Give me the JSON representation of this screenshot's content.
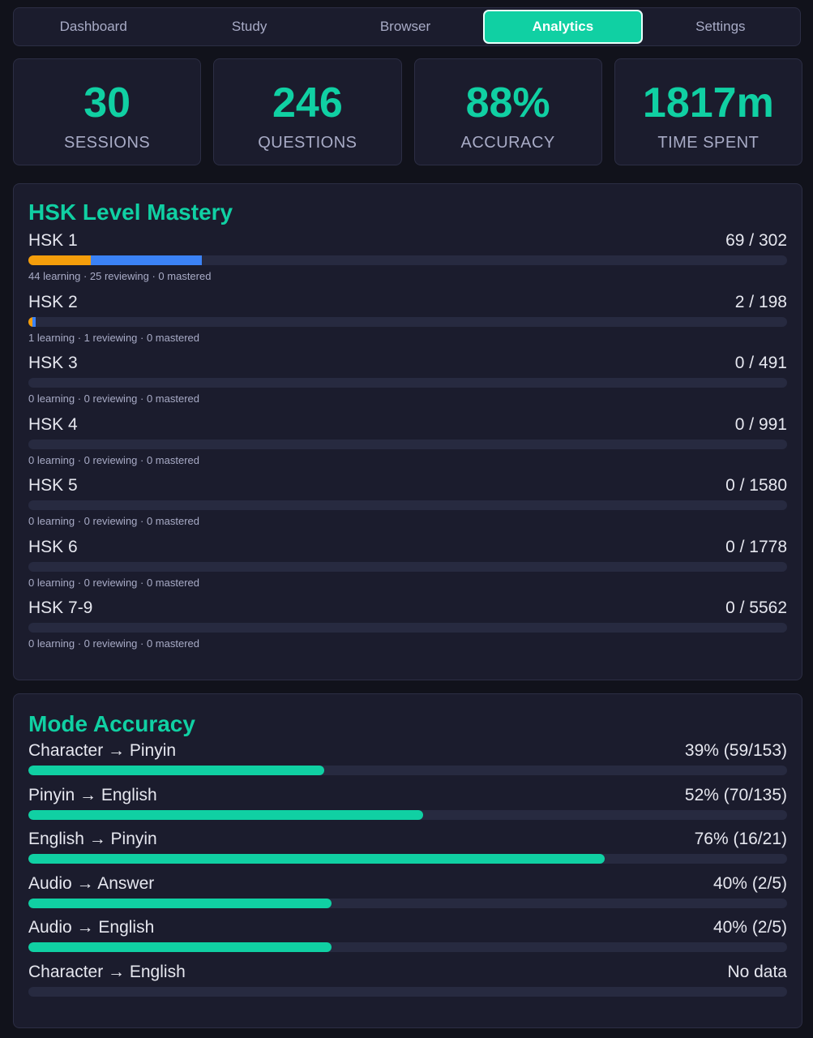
{
  "nav": {
    "tabs": [
      "Dashboard",
      "Study",
      "Browser",
      "Analytics",
      "Settings"
    ],
    "active": 3
  },
  "stats": [
    {
      "value": "30",
      "label": "SESSIONS"
    },
    {
      "value": "246",
      "label": "QUESTIONS"
    },
    {
      "value": "88%",
      "label": "ACCURACY"
    },
    {
      "value": "1817m",
      "label": "TIME SPENT"
    }
  ],
  "hsk": {
    "title": "HSK Level Mastery",
    "levels": [
      {
        "name": "HSK 1",
        "count": "69 / 302",
        "detail": "44 learning · 25 reviewing · 0 mastered",
        "learning": 44,
        "reviewing": 25,
        "mastered": 0,
        "total": 302
      },
      {
        "name": "HSK 2",
        "count": "2 / 198",
        "detail": "1 learning · 1 reviewing · 0 mastered",
        "learning": 1,
        "reviewing": 1,
        "mastered": 0,
        "total": 198
      },
      {
        "name": "HSK 3",
        "count": "0 / 491",
        "detail": "0 learning · 0 reviewing · 0 mastered",
        "learning": 0,
        "reviewing": 0,
        "mastered": 0,
        "total": 491
      },
      {
        "name": "HSK 4",
        "count": "0 / 991",
        "detail": "0 learning · 0 reviewing · 0 mastered",
        "learning": 0,
        "reviewing": 0,
        "mastered": 0,
        "total": 991
      },
      {
        "name": "HSK 5",
        "count": "0 / 1580",
        "detail": "0 learning · 0 reviewing · 0 mastered",
        "learning": 0,
        "reviewing": 0,
        "mastered": 0,
        "total": 1580
      },
      {
        "name": "HSK 6",
        "count": "0 / 1778",
        "detail": "0 learning · 0 reviewing · 0 mastered",
        "learning": 0,
        "reviewing": 0,
        "mastered": 0,
        "total": 1778
      },
      {
        "name": "HSK 7-9",
        "count": "0 / 5562",
        "detail": "0 learning · 0 reviewing · 0 mastered",
        "learning": 0,
        "reviewing": 0,
        "mastered": 0,
        "total": 5562
      }
    ],
    "colors": {
      "reviewing": "#f59e0b",
      "learning": "#3b82f6",
      "mastered": "#10d0a3"
    }
  },
  "modes": {
    "title": "Mode Accuracy",
    "color": "#10d0a3",
    "rows": [
      {
        "name": "Character → Pinyin",
        "value_label": "39% (59/153)",
        "percent": 39
      },
      {
        "name": "Pinyin → English",
        "value_label": "52% (70/135)",
        "percent": 52
      },
      {
        "name": "English → Pinyin",
        "value_label": "76% (16/21)",
        "percent": 76
      },
      {
        "name": "Audio → Answer",
        "value_label": "40% (2/5)",
        "percent": 40
      },
      {
        "name": "Audio → English",
        "value_label": "40% (2/5)",
        "percent": 40
      },
      {
        "name": "Character → English",
        "value_label": "No data",
        "percent": null
      }
    ]
  }
}
